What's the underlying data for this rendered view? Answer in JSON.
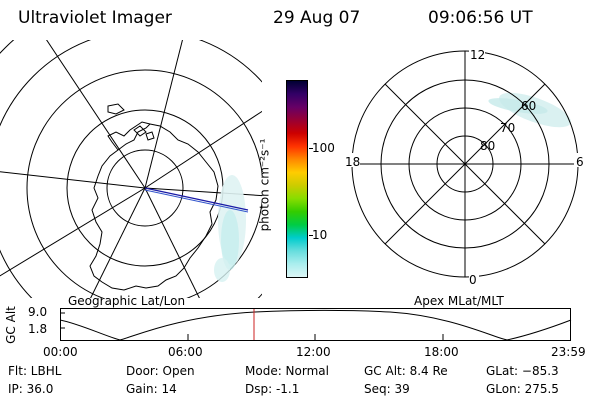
{
  "header": {
    "instrument": "Ultraviolet Imager",
    "date": "29 Aug 07",
    "time": "09:06:56 UT"
  },
  "colorbar": {
    "unit_label": "photon cm⁻²s⁻¹",
    "ticks": [
      "100",
      "10"
    ],
    "colors": [
      "#000033",
      "#330066",
      "#660066",
      "#990033",
      "#cc0000",
      "#ff3300",
      "#ff8800",
      "#ffcc00",
      "#cccc00",
      "#88dd00",
      "#33cc00",
      "#00cc44",
      "#00cccc",
      "#66dddd",
      "#aaeeee",
      "#ddf6f6"
    ]
  },
  "geo_panel": {
    "label": "Geographic Lat/Lon"
  },
  "mlt_panel": {
    "label": "Apex MLat/MLT",
    "mlt_labels": {
      "top": "12",
      "bottom": "0",
      "left": "18",
      "right": "6"
    },
    "lat_labels": [
      "80",
      "70",
      "60"
    ]
  },
  "altitude_plot": {
    "ylabel": "GC Alt",
    "yticks": [
      "9.0",
      "1.8"
    ],
    "xticks": [
      "00:00",
      "06:00",
      "12:00",
      "18:00",
      "23:59"
    ],
    "current_time_marker": "09:06"
  },
  "info": {
    "filter": "Flt: LBHL",
    "ip": "IP: 36.0",
    "door": "Door: Open",
    "gain": "Gain: 14",
    "mode": "Mode: Normal",
    "dsp": "Dsp:    -1.1",
    "gc_alt": "GC Alt: 8.4 Re",
    "seq": "Seq: 39",
    "glat": "GLat: −85.3",
    "glon": "GLon: 275.5"
  }
}
